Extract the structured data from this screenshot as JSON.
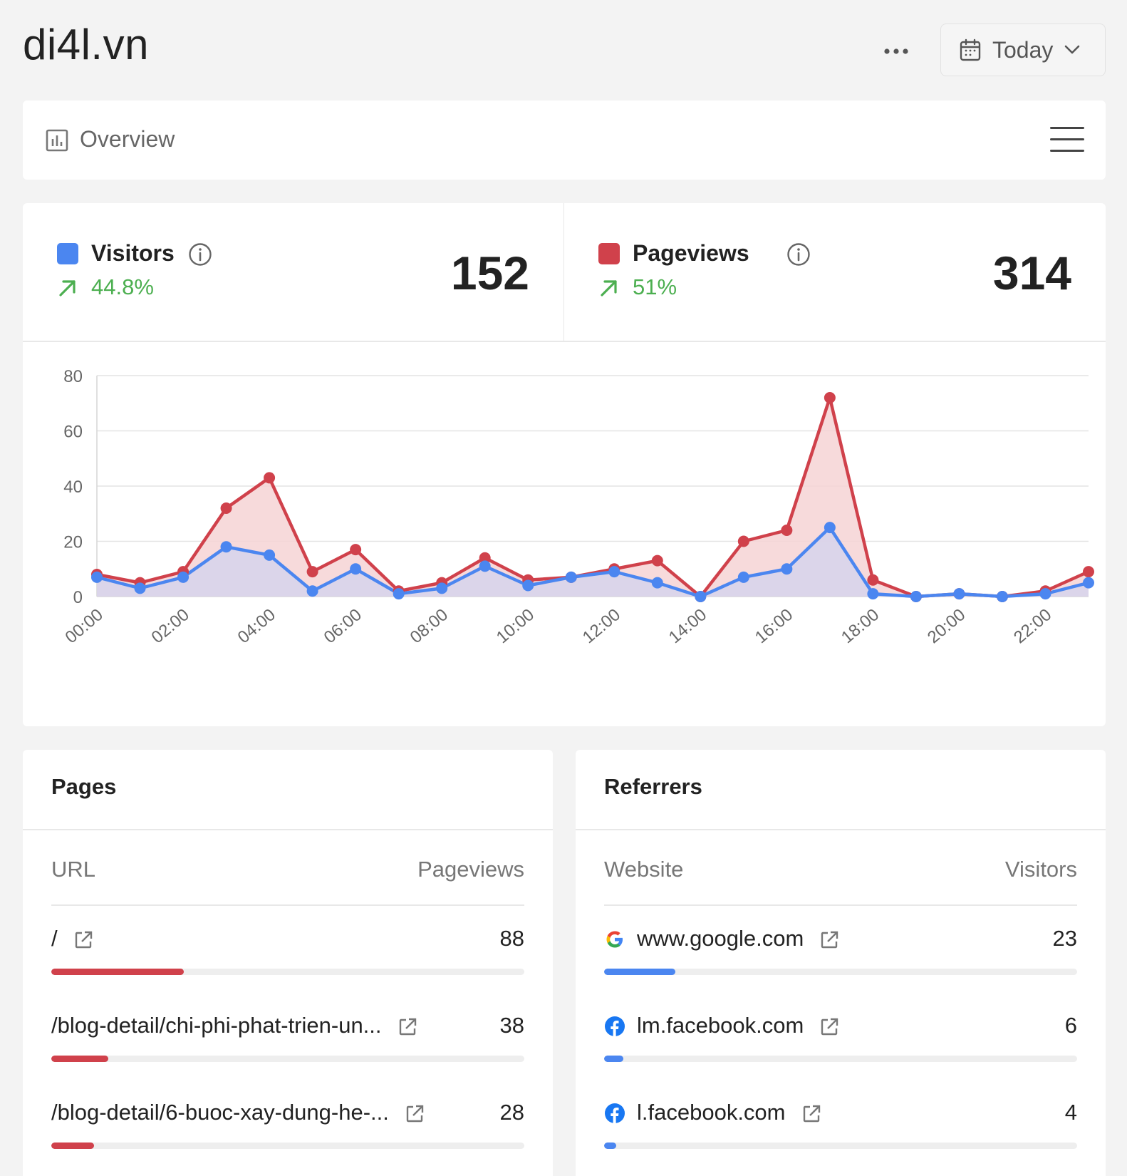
{
  "header": {
    "site": "di4l.vn",
    "more_icon": "more-horizontal-icon",
    "date_range": "Today"
  },
  "overview": {
    "label": "Overview"
  },
  "metrics": {
    "visitors": {
      "label": "Visitors",
      "change": "44.8%",
      "total": "152",
      "color": "#4b86f0"
    },
    "pageviews": {
      "label": "Pageviews",
      "change": "51%",
      "total": "314",
      "color": "#d0414b"
    },
    "trend_color": "#4caf50"
  },
  "chart_data": {
    "type": "area",
    "x": [
      "00:00",
      "01:00",
      "02:00",
      "03:00",
      "04:00",
      "05:00",
      "06:00",
      "07:00",
      "08:00",
      "09:00",
      "10:00",
      "11:00",
      "12:00",
      "13:00",
      "14:00",
      "15:00",
      "16:00",
      "17:00",
      "18:00",
      "19:00",
      "20:00",
      "21:00",
      "22:00",
      "23:00"
    ],
    "x_tick_labels": [
      "00:00",
      "02:00",
      "04:00",
      "06:00",
      "08:00",
      "10:00",
      "12:00",
      "14:00",
      "16:00",
      "18:00",
      "20:00",
      "22:00"
    ],
    "y_ticks": [
      0,
      20,
      40,
      60,
      80
    ],
    "ylim": [
      0,
      80
    ],
    "grid": true,
    "series": [
      {
        "name": "Pageviews",
        "color": "#d0414b",
        "fill": "#f6d3d5",
        "values": [
          8,
          5,
          9,
          32,
          43,
          9,
          17,
          2,
          5,
          14,
          6,
          7,
          10,
          13,
          0,
          20,
          24,
          72,
          6,
          0,
          1,
          0,
          2,
          9
        ]
      },
      {
        "name": "Visitors",
        "color": "#4b86f0",
        "fill": "#d6d4ec",
        "values": [
          7,
          3,
          7,
          18,
          15,
          2,
          10,
          1,
          3,
          11,
          4,
          7,
          9,
          5,
          0,
          7,
          10,
          25,
          1,
          0,
          1,
          0,
          1,
          5
        ]
      }
    ]
  },
  "pages": {
    "title": "Pages",
    "col_left": "URL",
    "col_right": "Pageviews",
    "bar_color": "#d0414b",
    "rows": [
      {
        "label": "/",
        "value": "88",
        "share": 0.28
      },
      {
        "label": "/blog-detail/chi-phi-phat-trien-un...",
        "value": "38",
        "share": 0.12
      },
      {
        "label": "/blog-detail/6-buoc-xay-dung-he-...",
        "value": "28",
        "share": 0.09
      }
    ]
  },
  "referrers": {
    "title": "Referrers",
    "col_left": "Website",
    "col_right": "Visitors",
    "bar_color": "#4b86f0",
    "rows": [
      {
        "label": "www.google.com",
        "icon": "google-icon",
        "value": "23",
        "share": 0.15
      },
      {
        "label": "lm.facebook.com",
        "icon": "facebook-icon",
        "value": "6",
        "share": 0.04
      },
      {
        "label": "l.facebook.com",
        "icon": "facebook-icon",
        "value": "4",
        "share": 0.026
      }
    ]
  }
}
